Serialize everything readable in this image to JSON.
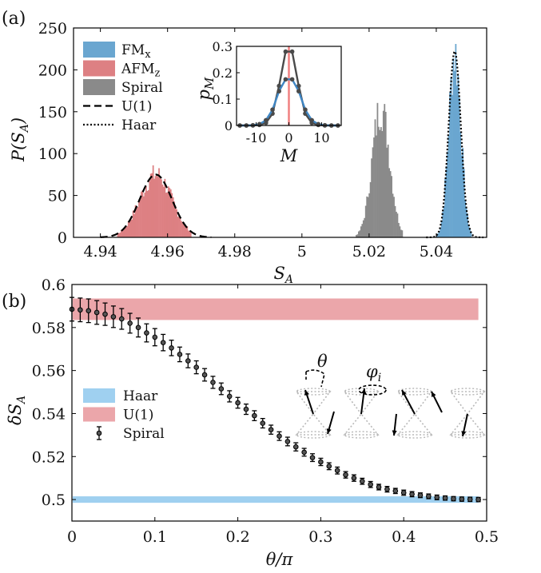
{
  "panel_labels": [
    "(a)",
    "(b)"
  ],
  "colors": {
    "fm": "#4f93c4",
    "fm_fill": "#6aa6d0",
    "afm": "#dd8083",
    "spiral": "#8a8a8a",
    "haar_band": "#9fd0f0",
    "u1_band": "#eba6aa",
    "inset_dark": "#4a4a4a",
    "inset_blue": "#3f86c4",
    "inset_red": "#f08080"
  },
  "chart_data": [
    {
      "id": "a",
      "type": "area",
      "xlabel": "S_A",
      "ylabel": "P(S_A)",
      "xlim": [
        4.932,
        5.055
      ],
      "ylim": [
        0,
        250
      ],
      "xticks": [
        "4.94",
        "4.96",
        "4.98",
        "5",
        "5.02",
        "5.04"
      ],
      "xtick_values": [
        4.94,
        4.96,
        4.98,
        5.0,
        5.02,
        5.04
      ],
      "yticks": [
        "0",
        "50",
        "100",
        "150",
        "200",
        "250"
      ],
      "ytick_values": [
        0,
        50,
        100,
        150,
        200,
        250
      ],
      "legend": {
        "placement": "top-left",
        "entries": [
          {
            "label": "FM",
            "sub": "x",
            "style": "patch",
            "color": "#6aa6d0"
          },
          {
            "label": "AFM",
            "sub": "z",
            "style": "patch",
            "color": "#dd8083"
          },
          {
            "label": "Spiral",
            "style": "patch",
            "color": "#8a8a8a"
          },
          {
            "label": "U(1)",
            "style": "dashed"
          },
          {
            "label": "Haar",
            "style": "dotted"
          }
        ]
      },
      "series": [
        {
          "name": "FM_x",
          "kind": "hist",
          "mean": 5.0455,
          "sd": 0.0018,
          "peak": 220,
          "range": [
            5.04,
            5.0505
          ]
        },
        {
          "name": "AFM_z",
          "kind": "hist",
          "mean": 4.9565,
          "sd": 0.0048,
          "peak": 75,
          "range": [
            4.945,
            4.967
          ]
        },
        {
          "name": "Spiral",
          "kind": "hist",
          "mean": 5.0235,
          "sd": 0.0026,
          "peak": 155,
          "range": [
            5.016,
            5.03
          ]
        },
        {
          "name": "U(1)",
          "kind": "gaussian",
          "mean": 4.9565,
          "sd": 0.0048,
          "peak": 75,
          "range": [
            4.94,
            4.973
          ]
        },
        {
          "name": "Haar",
          "kind": "gaussian",
          "mean": 5.0455,
          "sd": 0.0018,
          "peak": 222,
          "range": [
            5.037,
            5.054
          ]
        }
      ],
      "inset": {
        "xlabel": "M",
        "ylabel": "p_M",
        "xlim": [
          -16,
          16
        ],
        "ylim": [
          0,
          0.3
        ],
        "xticks": [
          "-10",
          "0",
          "10"
        ],
        "xtick_values": [
          -10,
          0,
          10
        ],
        "yticks": [
          "0",
          "0.1",
          "0.2",
          "0.3"
        ],
        "ytick_values": [
          0,
          0.1,
          0.2,
          0.3
        ],
        "x": [
          -15,
          -13,
          -11,
          -9,
          -7,
          -5,
          -3,
          -1,
          1,
          3,
          5,
          7,
          9,
          11,
          13,
          15
        ],
        "series": [
          {
            "name": "dark",
            "values": [
              0.0,
              0.0,
              0.0,
              0.002,
              0.01,
              0.045,
              0.15,
              0.28,
              0.28,
              0.15,
              0.045,
              0.01,
              0.002,
              0.0,
              0.0,
              0.0
            ]
          },
          {
            "name": "blue",
            "values": [
              0.0,
              0.0,
              0.001,
              0.005,
              0.02,
              0.06,
              0.13,
              0.175,
              0.175,
              0.13,
              0.06,
              0.02,
              0.005,
              0.001,
              0.0,
              0.0
            ]
          }
        ],
        "red_line_x": 0,
        "red_line_top": 0.3
      }
    },
    {
      "id": "b",
      "type": "scatter",
      "xlabel": "θ/π",
      "ylabel": "δS_A",
      "xlim": [
        0,
        0.5
      ],
      "ylim": [
        0.49,
        0.6
      ],
      "xticks": [
        "0",
        "0.1",
        "0.2",
        "0.3",
        "0.4",
        "0.5"
      ],
      "xtick_values": [
        0,
        0.1,
        0.2,
        0.3,
        0.4,
        0.5
      ],
      "yticks": [
        "0.5",
        "0.52",
        "0.54",
        "0.56",
        "0.58",
        "0.6"
      ],
      "ytick_values": [
        0.5,
        0.52,
        0.54,
        0.56,
        0.58,
        0.6
      ],
      "legend": {
        "placement": "center-left",
        "entries": [
          {
            "label": "Haar",
            "style": "band",
            "color": "#9fd0f0"
          },
          {
            "label": "U(1)",
            "style": "band",
            "color": "#eba6aa"
          },
          {
            "label": "Spiral",
            "style": "errorbar"
          }
        ]
      },
      "bands": [
        {
          "name": "U(1)",
          "ymin": 0.5835,
          "ymax": 0.5935,
          "xmax": 0.49
        },
        {
          "name": "Haar",
          "ymin": 0.4985,
          "ymax": 0.5015,
          "xmax": 0.49
        }
      ],
      "series": [
        {
          "name": "Spiral",
          "x": [
            0.0,
            0.01,
            0.02,
            0.03,
            0.04,
            0.05,
            0.06,
            0.07,
            0.08,
            0.09,
            0.1,
            0.11,
            0.12,
            0.13,
            0.14,
            0.15,
            0.16,
            0.17,
            0.18,
            0.19,
            0.2,
            0.21,
            0.22,
            0.23,
            0.24,
            0.25,
            0.26,
            0.27,
            0.28,
            0.29,
            0.3,
            0.31,
            0.32,
            0.33,
            0.34,
            0.35,
            0.36,
            0.37,
            0.38,
            0.39,
            0.4,
            0.41,
            0.42,
            0.43,
            0.44,
            0.45,
            0.46,
            0.47,
            0.48,
            0.49
          ],
          "y": [
            0.5885,
            0.5882,
            0.5878,
            0.587,
            0.5862,
            0.585,
            0.584,
            0.582,
            0.58,
            0.5775,
            0.5755,
            0.573,
            0.5705,
            0.5675,
            0.5645,
            0.5615,
            0.558,
            0.5545,
            0.5515,
            0.548,
            0.545,
            0.542,
            0.539,
            0.5355,
            0.5325,
            0.5295,
            0.527,
            0.5245,
            0.522,
            0.5195,
            0.5175,
            0.5155,
            0.5135,
            0.5115,
            0.51,
            0.5085,
            0.507,
            0.5058,
            0.5048,
            0.504,
            0.5032,
            0.5025,
            0.502,
            0.5015,
            0.501,
            0.5007,
            0.5004,
            0.5002,
            0.5001,
            0.5
          ],
          "err": [
            0.0055,
            0.0055,
            0.0055,
            0.0055,
            0.0052,
            0.005,
            0.0048,
            0.0046,
            0.0044,
            0.0042,
            0.004,
            0.0038,
            0.0036,
            0.0034,
            0.0032,
            0.003,
            0.0029,
            0.0028,
            0.0027,
            0.0026,
            0.0025,
            0.0024,
            0.0023,
            0.0022,
            0.0021,
            0.002,
            0.002,
            0.0019,
            0.0018,
            0.0018,
            0.0017,
            0.0016,
            0.0016,
            0.0015,
            0.0015,
            0.0014,
            0.0014,
            0.0013,
            0.0013,
            0.0012,
            0.0012,
            0.0012,
            0.0011,
            0.0011,
            0.0011,
            0.001,
            0.001,
            0.001,
            0.001,
            0.001
          ]
        }
      ],
      "annotation": {
        "theta": "θ",
        "phi": "φ",
        "phi_sub": "i"
      }
    }
  ]
}
